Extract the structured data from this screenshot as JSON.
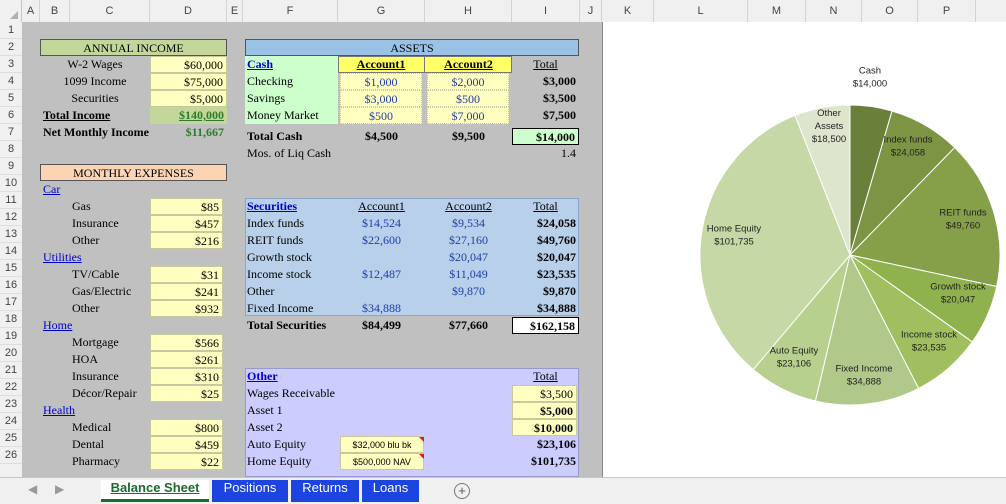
{
  "columns": [
    "A",
    "B",
    "C",
    "D",
    "E",
    "F",
    "G",
    "H",
    "I",
    "J",
    "K",
    "L",
    "M",
    "N",
    "O",
    "P"
  ],
  "rows": [
    "1",
    "2",
    "3",
    "4",
    "5",
    "6",
    "7",
    "8",
    "9",
    "10",
    "11",
    "12",
    "13",
    "14",
    "15",
    "16",
    "17",
    "18",
    "19",
    "20",
    "21",
    "22",
    "23",
    "24",
    "25",
    "26"
  ],
  "income": {
    "title": "ANNUAL INCOME",
    "w2_label": "W-2 Wages",
    "w2": "$60,000",
    "i1099_label": "1099 Income",
    "i1099": "$75,000",
    "sec_label": "Securities",
    "sec": "$5,000",
    "total_label": "Total Income",
    "total": "$140,000",
    "net_label": "Net Monthly Income",
    "net": "$11,667"
  },
  "expenses": {
    "title": "MONTHLY EXPENSES",
    "car": "Car",
    "gas_label": "Gas",
    "gas": "$85",
    "ins_label": "Insurance",
    "ins": "$457",
    "other_label": "Other",
    "other": "$216",
    "utilities": "Utilities",
    "tv_label": "TV/Cable",
    "tv": "$31",
    "gaselec_label": "Gas/Electric",
    "gaselec": "$241",
    "uother_label": "Other",
    "uother": "$932",
    "home": "Home",
    "mort_label": "Mortgage",
    "mort": "$566",
    "hoa_label": "HOA",
    "hoa": "$261",
    "hins_label": "Insurance",
    "hins": "$310",
    "decor_label": "Décor/Repair",
    "decor": "$25",
    "health": "Health",
    "med_label": "Medical",
    "med": "$800",
    "dental_label": "Dental",
    "dental": "$459",
    "pharm_label": "Pharmacy",
    "pharm": "$22"
  },
  "assets": {
    "title": "ASSETS",
    "cash_hdr": "Cash",
    "acct1": "Account1",
    "acct2": "Account2",
    "total_hdr": "Total",
    "checking_label": "Checking",
    "checking1": "$1,000",
    "checking2": "$2,000",
    "checking_t": "$3,000",
    "savings_label": "Savings",
    "savings1": "$3,000",
    "savings2": "$500",
    "savings_t": "$3,500",
    "mm_label": "Money Market",
    "mm1": "$500",
    "mm2": "$7,000",
    "mm_t": "$7,500",
    "tc_label": "Total Cash",
    "tc1": "$4,500",
    "tc2": "$9,500",
    "tc_t": "$14,000",
    "mos_label": "Mos. of Liq Cash",
    "mos": "1.4"
  },
  "securities": {
    "hdr": "Securities",
    "acct1": "Account1",
    "acct2": "Account2",
    "total_hdr": "Total",
    "idx_label": "Index funds",
    "idx1": "$14,524",
    "idx2": "$9,534",
    "idx_t": "$24,058",
    "reit_label": "REIT funds",
    "reit1": "$22,600",
    "reit2": "$27,160",
    "reit_t": "$49,760",
    "growth_label": "Growth stock",
    "growth2": "$20,047",
    "growth_t": "$20,047",
    "income_label": "Income stock",
    "income1": "$12,487",
    "income2": "$11,049",
    "income_t": "$23,535",
    "other_label": "Other",
    "other2": "$9,870",
    "other_t": "$9,870",
    "fixed_label": "Fixed Income",
    "fixed1": "$34,888",
    "fixed_t": "$34,888",
    "ts_label": "Total Securities",
    "ts1": "$84,499",
    "ts2": "$77,660",
    "ts_t": "$162,158"
  },
  "other_assets": {
    "hdr": "Other",
    "total_hdr": "Total",
    "wages_label": "Wages Receivable",
    "wages_t": "$3,500",
    "a1_label": "Asset 1",
    "a1_t": "$5,000",
    "a2_label": "Asset 2",
    "a2_t": "$10,000",
    "auto_label": "Auto Equity",
    "auto_note": "$32,000 blu bk",
    "auto_t": "$23,106",
    "home_label": "Home Equity",
    "home_note": "$500,000 NAV",
    "home_t": "$101,735"
  },
  "chart_data": {
    "type": "pie",
    "title": "",
    "categories": [
      "Cash",
      "Index funds",
      "REIT funds",
      "Growth stock",
      "Income stock",
      "Fixed Income",
      "Auto Equity",
      "Home Equity",
      "Other Assets"
    ],
    "values": [
      14000,
      24058,
      49760,
      20047,
      23535,
      34888,
      23106,
      101735,
      18500
    ],
    "value_labels": [
      "$14,000",
      "$24,058",
      "$49,760",
      "$20,047",
      "$23,535",
      "$34,888",
      "$23,106",
      "$101,735",
      "$18,500"
    ],
    "colors": [
      "#6a7f3a",
      "#7d9444",
      "#86a04a",
      "#8fb24e",
      "#a0c060",
      "#b0c98a",
      "#b8d08e",
      "#c6d8a6",
      "#dde6cc"
    ],
    "legend": "none"
  },
  "tabs": [
    "Balance Sheet",
    "Positions",
    "Returns",
    "Loans"
  ]
}
